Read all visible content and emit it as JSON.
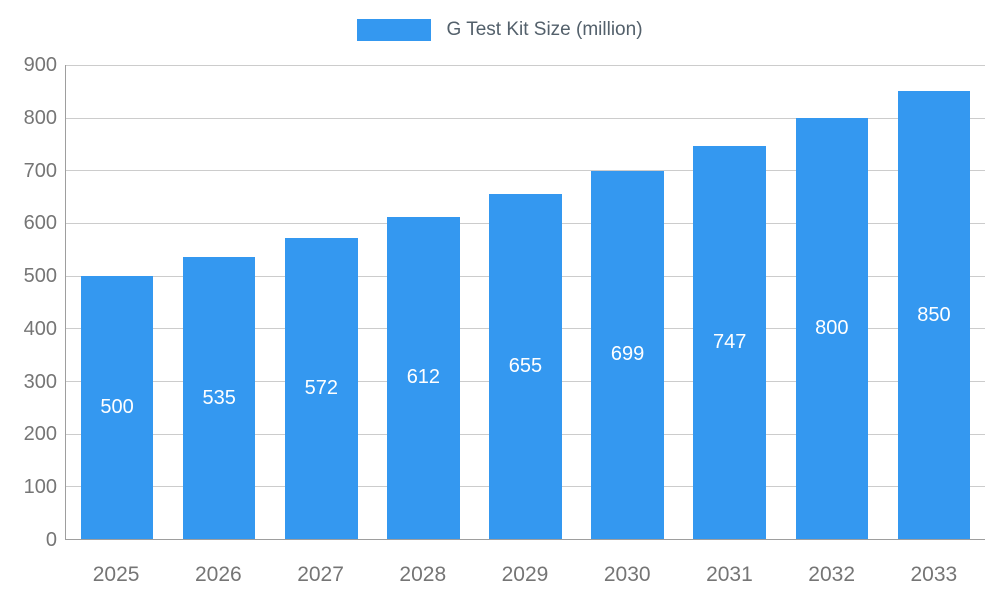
{
  "chart_data": {
    "type": "bar",
    "title": "",
    "xlabel": "",
    "ylabel": "",
    "legend": "G Test Kit Size (million)",
    "legend_position": "top",
    "categories": [
      "2025",
      "2026",
      "2027",
      "2028",
      "2029",
      "2030",
      "2031",
      "2032",
      "2033"
    ],
    "values": [
      500,
      535,
      572,
      612,
      655,
      699,
      747,
      800,
      850
    ],
    "ylim": [
      0,
      900
    ],
    "ytick_step": 100,
    "grid": "on",
    "bar_color": "#3498f0",
    "bar_label_color": "#ffffff",
    "axis_text_color": "#757575",
    "axis_line_color": "#9e9e9e",
    "grid_color": "#cccccc",
    "legend_text_color": "#53606b"
  }
}
